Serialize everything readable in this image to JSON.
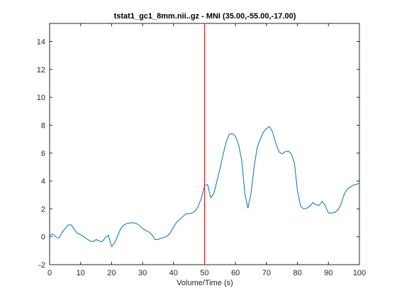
{
  "chart_data": {
    "type": "line",
    "title": "tstat1_gc1_8mm.nii..gz - MNI (35.00,-55.00,-17.00)",
    "xlabel": "Volume/Time (s)",
    "ylabel": "",
    "xlim": [
      0,
      100
    ],
    "ylim": [
      -2,
      15.3
    ],
    "xticks": [
      0,
      10,
      20,
      30,
      40,
      50,
      60,
      70,
      80,
      90,
      100
    ],
    "yticks": [
      -2,
      0,
      2,
      4,
      6,
      8,
      10,
      12,
      14
    ],
    "grid": false,
    "legend": "none",
    "series": [
      {
        "color": "#0072bd",
        "x": [
          0,
          1,
          2,
          3,
          4,
          5,
          6,
          7,
          8,
          9,
          10,
          11,
          12,
          13,
          14,
          15,
          16,
          17,
          18,
          19,
          20,
          21,
          22,
          23,
          24,
          25,
          26,
          27,
          28,
          29,
          30,
          31,
          32,
          33,
          34,
          35,
          36,
          37,
          38,
          39,
          40,
          41,
          42,
          43,
          44,
          45,
          46,
          47,
          48,
          49,
          50,
          51,
          52,
          53,
          54,
          55,
          56,
          57,
          58,
          59,
          60,
          61,
          62,
          63,
          64,
          65,
          66,
          67,
          68,
          69,
          70,
          71,
          72,
          73,
          74,
          75,
          76,
          77,
          78,
          79,
          80,
          81,
          82,
          83,
          84,
          85,
          86,
          87,
          88,
          89,
          90,
          91,
          92,
          93,
          94,
          95,
          96,
          97,
          98,
          99,
          100
        ],
        "y": [
          0.1,
          0.2,
          0.0,
          -0.1,
          0.3,
          0.6,
          0.85,
          0.85,
          0.5,
          0.25,
          0.15,
          0.0,
          -0.15,
          -0.3,
          -0.35,
          -0.2,
          -0.3,
          -0.35,
          -0.05,
          0.1,
          -0.7,
          -0.45,
          0.1,
          0.6,
          0.85,
          0.95,
          1.0,
          1.0,
          0.95,
          0.8,
          0.6,
          0.45,
          0.35,
          0.15,
          -0.2,
          -0.2,
          -0.1,
          -0.05,
          0.05,
          0.3,
          0.7,
          1.05,
          1.25,
          1.45,
          1.65,
          1.65,
          1.7,
          1.85,
          2.2,
          2.8,
          3.65,
          3.75,
          2.8,
          3.1,
          4.0,
          4.9,
          5.9,
          6.8,
          7.35,
          7.4,
          7.2,
          6.6,
          5.5,
          3.1,
          2.05,
          3.1,
          5.0,
          6.4,
          7.0,
          7.5,
          7.75,
          7.9,
          7.5,
          6.7,
          6.1,
          5.95,
          6.1,
          6.15,
          5.95,
          5.3,
          3.3,
          2.2,
          2.0,
          2.05,
          2.2,
          2.45,
          2.3,
          2.25,
          2.55,
          2.2,
          1.7,
          1.7,
          1.75,
          1.9,
          2.3,
          3.0,
          3.4,
          3.55,
          3.7,
          3.75,
          3.85
        ]
      }
    ],
    "marker_line": {
      "x": 50,
      "color": "#ff0000"
    }
  }
}
